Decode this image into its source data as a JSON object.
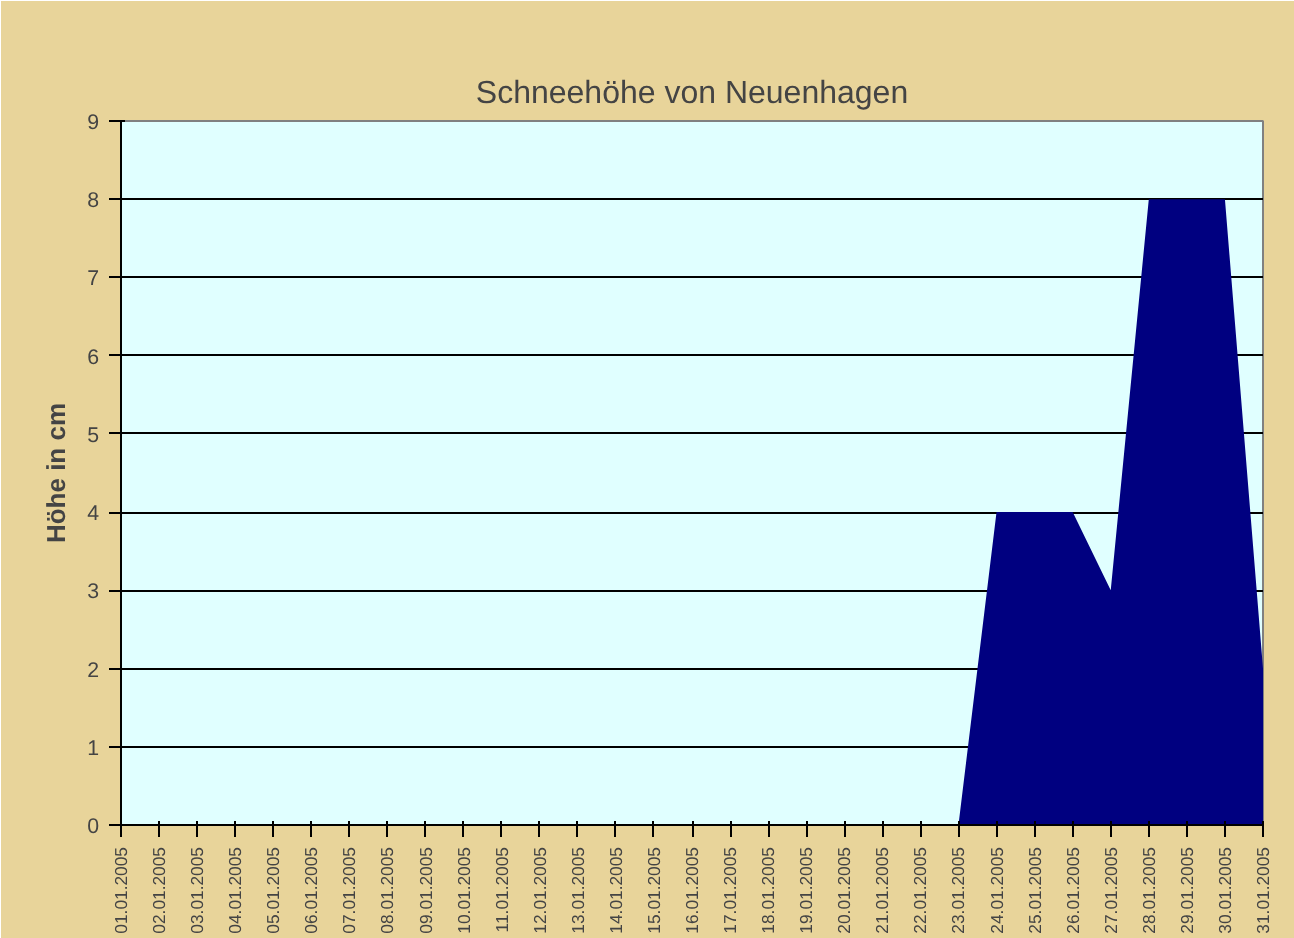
{
  "chart_data": {
    "type": "area",
    "title": "Schneehöhe von Neuenhagen",
    "ylabel": "Höhe in cm",
    "categories": [
      "01.01.2005",
      "02.01.2005",
      "03.01.2005",
      "04.01.2005",
      "05.01.2005",
      "06.01.2005",
      "07.01.2005",
      "08.01.2005",
      "09.01.2005",
      "10.01.2005",
      "11.01.2005",
      "12.01.2005",
      "13.01.2005",
      "14.01.2005",
      "15.01.2005",
      "16.01.2005",
      "17.01.2005",
      "18.01.2005",
      "19.01.2005",
      "20.01.2005",
      "21.01.2005",
      "22.01.2005",
      "23.01.2005",
      "24.01.2005",
      "25.01.2005",
      "26.01.2005",
      "27.01.2005",
      "28.01.2005",
      "29.01.2005",
      "30.01.2005",
      "31.01.2005"
    ],
    "series": [
      {
        "color": "#000080",
        "values": [
          0,
          0,
          0,
          0,
          0,
          0,
          0,
          0,
          0,
          0,
          0,
          0,
          0,
          0,
          0,
          0,
          0,
          0,
          0,
          0,
          0,
          0,
          0,
          4,
          4,
          4,
          3,
          8,
          8,
          8,
          2
        ]
      }
    ],
    "ylim": [
      0,
      9
    ],
    "yticks": [
      0,
      1,
      2,
      3,
      4,
      5,
      6,
      7,
      8,
      9
    ],
    "grid": "y"
  }
}
